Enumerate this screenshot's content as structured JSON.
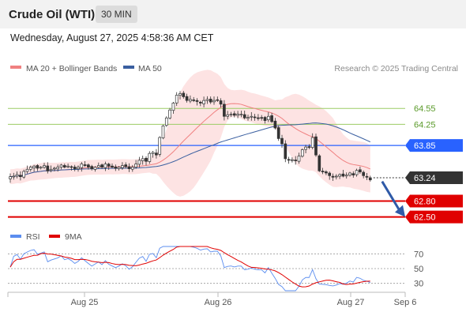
{
  "header": {
    "title": "Crude Oil (WTI)",
    "interval": "30 MIN",
    "datetime": "Wednesday, August 27, 2025 4:58:36 AM CET"
  },
  "legend": {
    "ma20_label": "MA 20 + Bollinger Bands",
    "ma50_label": "MA 50",
    "copyright": "Research © 2025 Trading Central",
    "rsi_label": "RSI",
    "rsi_ma_label": "9MA"
  },
  "colors": {
    "ma20": "#f08080",
    "ma50": "#3a5fa0",
    "bollinger_fill": "#fde3e3",
    "candle": "#333333",
    "resistance": "#9ccc65",
    "pivot": "#2962ff",
    "support": "#e00000",
    "current": "#333333",
    "rsi": "#5b8def",
    "rsi_ma": "#e00000"
  },
  "chart_data": [
    {
      "type": "candlestick",
      "title": "Crude Oil (WTI)",
      "timeframe": "30 MIN",
      "x_tick_labels": [
        "Aug 25",
        "Aug 26",
        "Aug 27",
        "Sep 6"
      ],
      "ylim": [
        62.3,
        65.15
      ],
      "grid": false,
      "legend_position": "top-left",
      "close": [
        63.26,
        63.27,
        63.3,
        63.26,
        63.36,
        63.4,
        63.44,
        63.46,
        63.42,
        63.44,
        63.47,
        63.37,
        63.4,
        63.42,
        63.44,
        63.48,
        63.44,
        63.46,
        63.44,
        63.41,
        63.44,
        63.5,
        63.47,
        63.44,
        63.41,
        63.44,
        63.47,
        63.44,
        63.5,
        63.46,
        63.44,
        63.42,
        63.44,
        63.47,
        63.45,
        63.41,
        63.44,
        63.5,
        63.57,
        63.6,
        63.55,
        63.7,
        63.72,
        63.67,
        64.0,
        64.22,
        64.37,
        64.52,
        64.65,
        64.8,
        64.83,
        64.77,
        64.7,
        64.72,
        64.7,
        64.68,
        64.65,
        64.7,
        64.72,
        64.67,
        64.7,
        64.7,
        64.63,
        64.4,
        64.43,
        64.44,
        64.42,
        64.44,
        64.44,
        64.37,
        64.38,
        64.4,
        64.38,
        64.37,
        64.37,
        64.32,
        64.4,
        64.3,
        64.18,
        63.98,
        63.88,
        63.6,
        63.58,
        63.58,
        63.56,
        63.65,
        63.77,
        63.82,
        63.82,
        64.0,
        63.67,
        63.37,
        63.35,
        63.33,
        63.28,
        63.25,
        63.27,
        63.3,
        63.27,
        63.29,
        63.33,
        63.29,
        63.38,
        63.35,
        63.28,
        63.25,
        63.2
      ],
      "lines": {
        "resistance_2": 64.55,
        "resistance_1": 64.25,
        "pivot": 63.85,
        "current": 63.24,
        "support_1": 62.8,
        "support_2": 62.5
      },
      "price_labels": [
        "64.55",
        "64.25",
        "63.85",
        "63.24",
        "62.80",
        "62.50"
      ],
      "forecast": {
        "from": 63.2,
        "to": 62.5,
        "direction": "down"
      },
      "series": [
        {
          "name": "MA 20 + Bollinger Bands",
          "indicator": "ma20"
        },
        {
          "name": "MA 50",
          "indicator": "ma50"
        }
      ]
    },
    {
      "type": "line",
      "title": "RSI",
      "ylim": [
        20,
        80
      ],
      "y_tick_labels": [
        "70",
        "50",
        "30"
      ],
      "reference_levels": [
        70,
        50,
        30
      ],
      "series": [
        {
          "name": "RSI",
          "indicator": "rsi"
        },
        {
          "name": "9MA",
          "indicator": "rsi_ma9"
        }
      ]
    }
  ]
}
